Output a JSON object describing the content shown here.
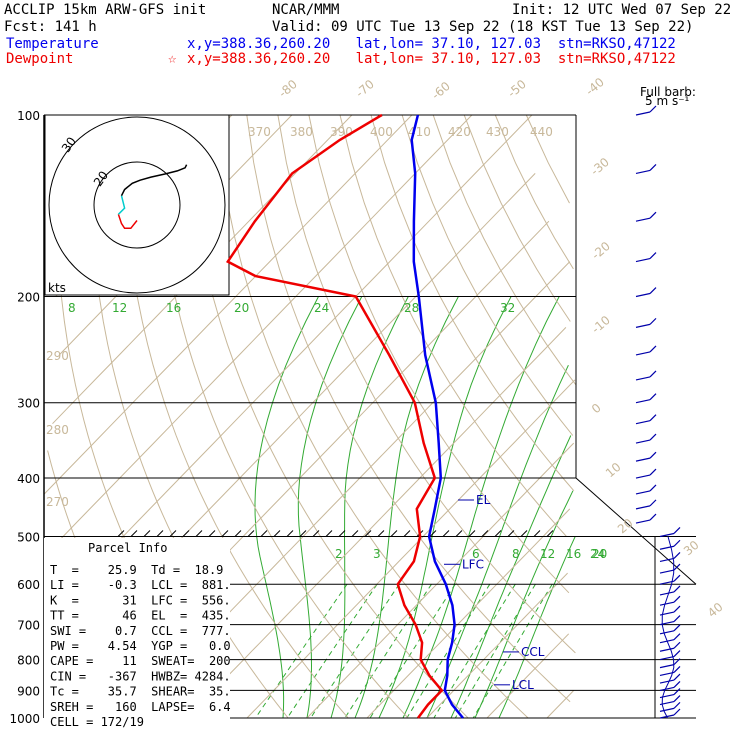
{
  "header": {
    "model": "ACCLIP 15km ARW-GFS init",
    "org": "NCAR/MMM",
    "init": "Init: 12 UTC Wed 07 Sep 22",
    "fcst": "Fcst:  141 h",
    "valid": "Valid: 09 UTC Tue 13 Sep 22 (18 KST Tue 13 Sep 22)",
    "temp_label": "Temperature",
    "temp_loc": "x,y=388.36,260.20   lat,lon= 37.10, 127.03  stn=RKSO,47122",
    "dew_label": "Dewpoint",
    "dew_loc": "x,y=388.36,260.20   lat,lon= 37.10, 127.03  stn=RKSO,47122",
    "dew_marker": "☆"
  },
  "barb_legend": {
    "line1": "Full barb:",
    "line2": "5 m s⁻¹"
  },
  "hodograph": {
    "unit": "kts",
    "ring_labels": [
      "30",
      "20"
    ]
  },
  "parcel_info": {
    "title": "Parcel Info",
    "rows": [
      "T  =    25.9  Td =  18.9",
      "LI =    -0.3  LCL =  881.",
      "K  =      31  LFC =  556.",
      "TT =      46  EL  =  435.",
      "SWI =    0.7  CCL =  777.",
      "PW =    4.54  YGP =   0.0",
      "CAPE =    11  SWEAT=  200",
      "CIN =   -367  HWBZ= 4284.",
      "Tc =    35.7  SHEAR=  35.",
      "SREH =   160  LAPSE=  6.4",
      "CELL = 172/19"
    ]
  },
  "chart_data": {
    "type": "skew-t",
    "title": "",
    "xlabel": "",
    "ylabel": "",
    "pressure_levels": [
      100,
      200,
      300,
      400,
      500,
      600,
      700,
      800,
      900,
      1000
    ],
    "pressure_labels": [
      "100",
      "200",
      "300",
      "400",
      "500",
      "600",
      "700",
      "800",
      "900",
      "1000"
    ],
    "ylim": [
      1000,
      100
    ],
    "isotherms": [
      -80,
      -70,
      -60,
      -50,
      -40,
      -30,
      -20,
      -10,
      0,
      10,
      20,
      30,
      40
    ],
    "isotherm_labels": [
      "-80",
      "-70",
      "-60",
      "-50",
      "-40",
      "-30",
      "-20",
      "-10",
      "0",
      "10",
      "20",
      "30",
      "40"
    ],
    "theta_labels": [
      "370",
      "380",
      "390",
      "400",
      "410",
      "420",
      "430",
      "440",
      "290",
      "280",
      "270"
    ],
    "thetae_labels": [
      "8",
      "12",
      "16",
      "20",
      "24",
      "28",
      "32"
    ],
    "mixing_ratio_labels": [
      "2",
      "3",
      "4",
      "6",
      "8",
      "12",
      "16",
      "20",
      "24"
    ],
    "parcel_levels": [
      {
        "name": "EL",
        "p": 435
      },
      {
        "name": "LFC",
        "p": 556
      },
      {
        "name": "CCL",
        "p": 777
      },
      {
        "name": "LCL",
        "p": 881
      }
    ],
    "series": [
      {
        "name": "Temperature",
        "color": "#0000ee",
        "points": [
          [
            1000,
            26.0
          ],
          [
            950,
            22.0
          ],
          [
            900,
            18.5
          ],
          [
            850,
            16.5
          ],
          [
            800,
            14.0
          ],
          [
            750,
            12.0
          ],
          [
            700,
            9.5
          ],
          [
            650,
            6.0
          ],
          [
            600,
            1.5
          ],
          [
            550,
            -4.0
          ],
          [
            500,
            -9.0
          ],
          [
            450,
            -12.5
          ],
          [
            400,
            -16.5
          ],
          [
            350,
            -22.5
          ],
          [
            300,
            -29.5
          ],
          [
            250,
            -39.0
          ],
          [
            200,
            -49.5
          ],
          [
            175,
            -56.0
          ],
          [
            150,
            -62.5
          ],
          [
            125,
            -70.0
          ],
          [
            110,
            -76.0
          ],
          [
            100,
            -79.0
          ]
        ]
      },
      {
        "name": "Dewpoint",
        "color": "#ee0000",
        "points": [
          [
            1000,
            18.5
          ],
          [
            950,
            18.0
          ],
          [
            900,
            18.0
          ],
          [
            850,
            13.5
          ],
          [
            800,
            9.5
          ],
          [
            750,
            7.0
          ],
          [
            700,
            3.0
          ],
          [
            650,
            -2.0
          ],
          [
            600,
            -6.5
          ],
          [
            550,
            -7.5
          ],
          [
            500,
            -10.5
          ],
          [
            450,
            -15.5
          ],
          [
            400,
            -17.5
          ],
          [
            350,
            -25.0
          ],
          [
            300,
            -33.0
          ],
          [
            250,
            -45.0
          ],
          [
            200,
            -60.0
          ],
          [
            185,
            -80.0
          ],
          [
            175,
            -87.0
          ],
          [
            150,
            -89.0
          ],
          [
            125,
            -90.5
          ],
          [
            110,
            -88.0
          ],
          [
            100,
            -85.0
          ]
        ]
      }
    ],
    "hodograph": [
      [
        0,
        -10
      ],
      [
        -4,
        -15
      ],
      [
        -8,
        -15
      ],
      [
        -10,
        -12
      ],
      [
        -12,
        -6
      ],
      [
        -8,
        -2
      ],
      [
        -10,
        6
      ],
      [
        -8,
        10
      ],
      [
        -3,
        14
      ],
      [
        2,
        16
      ],
      [
        9,
        18
      ],
      [
        18,
        20
      ],
      [
        26,
        22
      ],
      [
        31,
        24
      ],
      [
        32,
        26
      ]
    ],
    "wind_barbs": [
      [
        100,
        12
      ],
      [
        150,
        18
      ],
      [
        200,
        22
      ],
      [
        250,
        24
      ],
      [
        300,
        26
      ],
      [
        400,
        25
      ],
      [
        500,
        22
      ],
      [
        600,
        14
      ],
      [
        700,
        10
      ],
      [
        800,
        8
      ],
      [
        900,
        5
      ],
      [
        1000,
        3
      ]
    ]
  }
}
